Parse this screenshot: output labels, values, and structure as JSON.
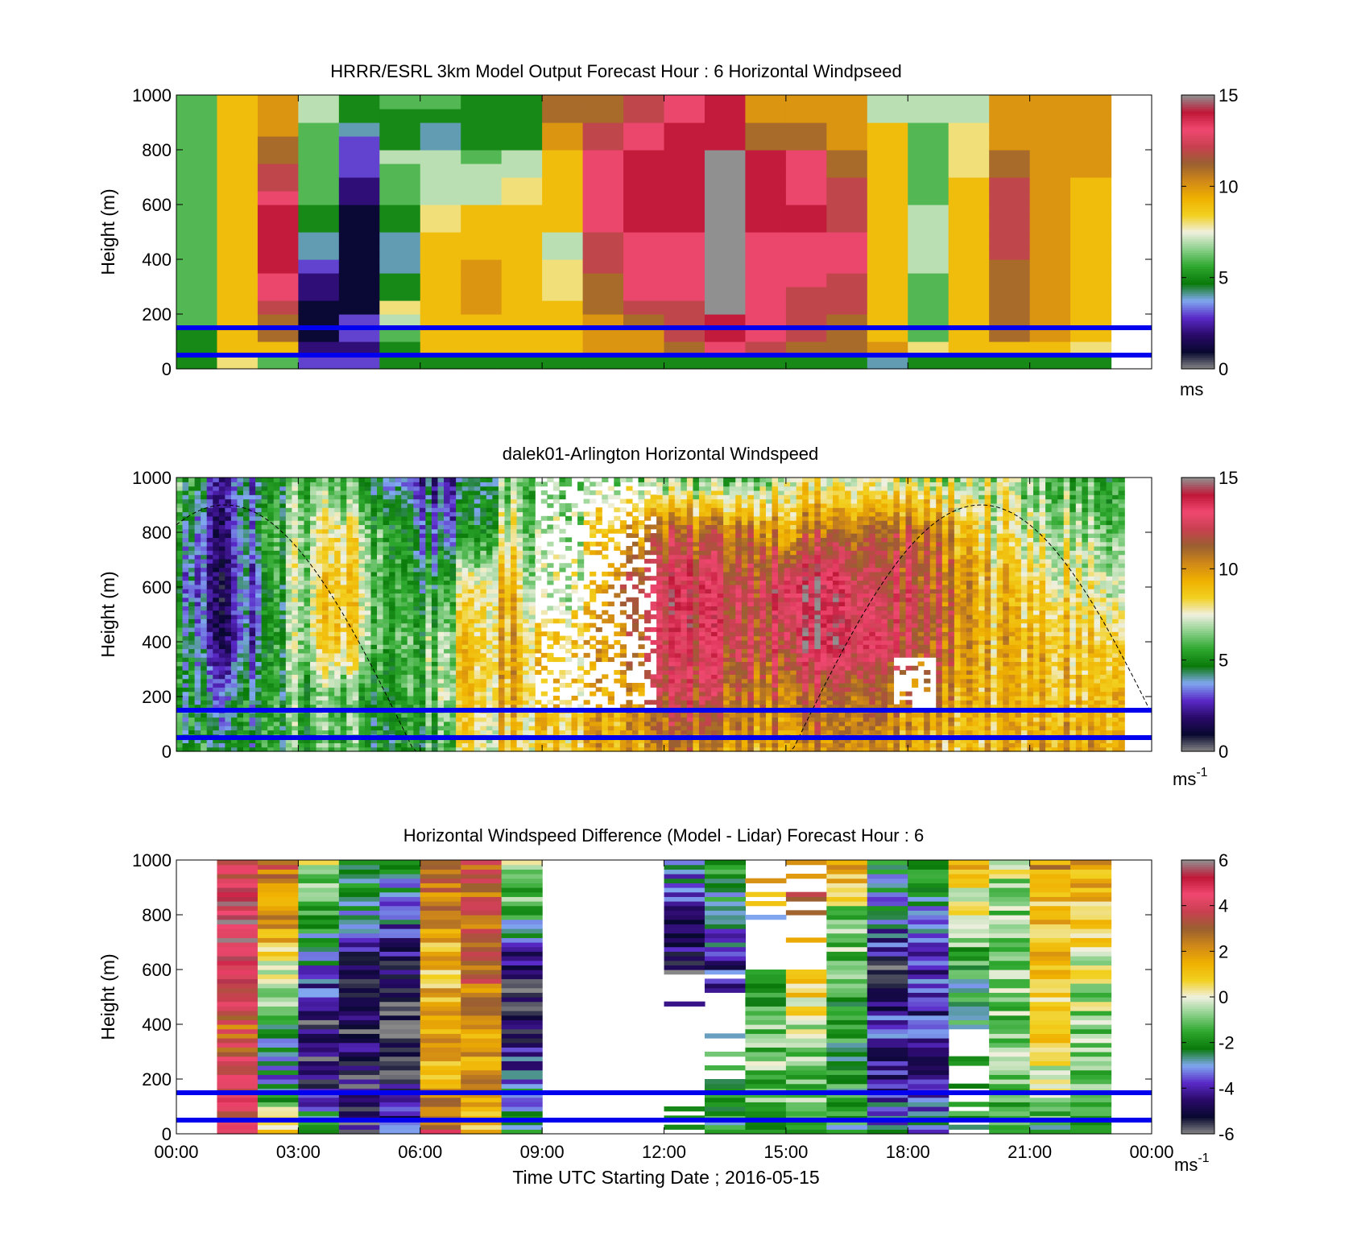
{
  "panels": [
    {
      "id": "model",
      "title": "HRRR/ESRL 3km Model Output   Forecast Hour : 6 Horizontal Windpseed",
      "ylabel": "Height (m)",
      "cbar_unit": "ms",
      "cbar_unit_sup": ""
    },
    {
      "id": "lidar",
      "title": "dalek01-Arlington  Horizontal Windspeed",
      "ylabel": "Height (m)",
      "cbar_unit": "ms",
      "cbar_unit_sup": "-1"
    },
    {
      "id": "diff",
      "title": "Horizontal Windspeed Difference (Model - Lidar) Forecast Hour : 6",
      "ylabel": "Height (m)",
      "cbar_unit": "ms",
      "cbar_unit_sup": "-1"
    }
  ],
  "xlabel": "Time UTC  Starting Date ; 2016-05-15",
  "colors": {
    "speed_scale": [
      "#888888",
      "#080830",
      "#2a0a6a",
      "#5a2ac8",
      "#80a8f0",
      "#0a7a0a",
      "#2ea82e",
      "#8ad08a",
      "#f0f0e0",
      "#f2d020",
      "#f0b000",
      "#d08818",
      "#9a6030",
      "#c84050",
      "#f04870",
      "#c01838",
      "#909090"
    ],
    "diff_scale": [
      "#888888",
      "#080830",
      "#2a0a6a",
      "#5a2ac8",
      "#80a8f0",
      "#0a7a0a",
      "#2ea82e",
      "#8ad08a",
      "#f0f0e0",
      "#f2d020",
      "#f0b000",
      "#d08818",
      "#9a6030",
      "#c84050",
      "#f04870",
      "#c01838",
      "#909090"
    ],
    "height_lines": "#0000ee"
  },
  "chart_data": [
    {
      "type": "heatmap",
      "title": "HRRR/ESRL 3km Model Output   Forecast Hour : 6 Horizontal Windpseed",
      "xlabel": "",
      "ylabel": "Height (m)",
      "xlim_hours": [
        0,
        24
      ],
      "ylim": [
        0,
        1000
      ],
      "xticks": [
        "",
        "",
        "",
        "",
        "",
        "",
        "",
        "",
        ""
      ],
      "yticks": [
        0,
        200,
        400,
        600,
        800,
        1000
      ],
      "clim": [
        0,
        15
      ],
      "cbar_ticks": [
        0,
        5,
        10,
        15
      ],
      "cbar_unit": "ms",
      "time_hours": [
        0,
        1,
        2,
        3,
        4,
        5,
        6,
        7,
        8,
        9,
        10,
        11,
        12,
        13,
        14,
        15,
        16,
        17,
        18,
        19,
        20,
        21,
        22
      ],
      "height_m": [
        25,
        75,
        125,
        175,
        225,
        275,
        325,
        375,
        425,
        475,
        525,
        575,
        625,
        675,
        725,
        775,
        825,
        875,
        925,
        975
      ],
      "horizontal_lines_m": [
        50,
        150
      ],
      "values": [
        [
          5,
          5,
          5,
          6,
          6,
          6,
          6,
          6,
          6,
          6,
          6,
          6,
          6,
          6,
          6,
          6,
          6,
          6,
          6,
          6
        ],
        [
          8,
          9,
          9,
          9,
          9,
          9,
          9,
          9,
          9,
          9,
          9,
          9,
          9,
          9,
          9,
          9,
          9,
          9,
          9,
          9
        ],
        [
          6,
          9,
          11,
          11,
          12,
          13,
          13,
          14,
          14,
          14,
          14,
          14,
          13,
          12,
          12,
          11,
          11,
          10,
          10,
          10
        ],
        [
          3,
          2,
          1,
          1,
          1,
          2,
          2,
          3,
          4,
          4,
          5,
          5,
          6,
          6,
          6,
          6,
          6,
          6,
          7,
          7
        ],
        [
          3,
          2,
          3,
          3,
          1,
          1,
          1,
          1,
          1,
          1,
          1,
          1,
          2,
          2,
          3,
          3,
          3,
          4,
          5,
          5
        ],
        [
          5,
          5,
          6,
          7,
          8,
          5,
          5,
          4,
          4,
          4,
          5,
          5,
          6,
          6,
          6,
          7,
          5,
          5,
          5,
          6
        ],
        [
          5,
          9,
          9,
          9,
          9,
          9,
          9,
          9,
          9,
          9,
          8,
          8,
          7,
          7,
          7,
          7,
          4,
          4,
          5,
          6
        ],
        [
          5,
          9,
          9,
          9,
          10,
          10,
          10,
          10,
          9,
          9,
          9,
          9,
          7,
          7,
          7,
          6,
          5,
          5,
          5,
          5
        ],
        [
          5,
          9,
          9,
          9,
          9,
          9,
          9,
          9,
          9,
          9,
          9,
          9,
          8,
          8,
          7,
          7,
          5,
          5,
          5,
          5
        ],
        [
          5,
          9,
          9,
          9,
          9,
          8,
          8,
          8,
          7,
          7,
          9,
          9,
          9,
          9,
          9,
          9,
          10,
          10,
          11,
          11
        ],
        [
          5,
          10,
          10,
          10,
          11,
          11,
          11,
          12,
          12,
          12,
          13,
          13,
          13,
          13,
          13,
          13,
          12,
          12,
          11,
          11
        ],
        [
          5,
          10,
          10,
          11,
          12,
          13,
          13,
          13,
          13,
          13,
          14,
          14,
          14,
          14,
          14,
          14,
          13,
          13,
          12,
          12
        ],
        [
          5,
          11,
          12,
          12,
          12,
          13,
          13,
          13,
          13,
          13,
          14,
          14,
          14,
          14,
          14,
          14,
          14,
          14,
          13,
          13
        ],
        [
          5,
          13,
          14,
          14,
          15,
          15,
          15,
          15,
          15,
          15,
          16,
          16,
          16,
          16,
          16,
          16,
          14,
          14,
          14,
          14
        ],
        [
          5,
          12,
          13,
          13,
          13,
          13,
          13,
          13,
          13,
          13,
          14,
          14,
          14,
          14,
          14,
          14,
          11,
          11,
          10,
          10
        ],
        [
          5,
          11,
          12,
          12,
          12,
          12,
          13,
          13,
          13,
          13,
          14,
          14,
          13,
          13,
          13,
          13,
          11,
          11,
          10,
          10
        ],
        [
          5,
          11,
          11,
          11,
          12,
          12,
          12,
          13,
          13,
          13,
          12,
          12,
          12,
          12,
          11,
          11,
          10,
          10,
          10,
          10
        ],
        [
          4,
          10,
          9,
          9,
          9,
          9,
          9,
          9,
          9,
          9,
          9,
          9,
          9,
          9,
          9,
          9,
          9,
          9,
          7,
          7
        ],
        [
          5,
          8,
          6,
          6,
          6,
          6,
          6,
          7,
          7,
          7,
          7,
          7,
          6,
          6,
          6,
          6,
          6,
          6,
          7,
          7
        ],
        [
          5,
          9,
          9,
          9,
          9,
          9,
          9,
          9,
          9,
          9,
          9,
          9,
          9,
          9,
          8,
          8,
          8,
          8,
          7,
          7
        ],
        [
          5,
          9,
          11,
          11,
          11,
          11,
          11,
          11,
          12,
          12,
          12,
          12,
          12,
          12,
          11,
          11,
          10,
          10,
          10,
          10
        ],
        [
          5,
          9,
          10,
          10,
          10,
          10,
          10,
          10,
          10,
          10,
          10,
          10,
          10,
          10,
          10,
          10,
          10,
          10,
          10,
          10
        ],
        [
          5,
          8,
          9,
          9,
          9,
          9,
          9,
          9,
          9,
          9,
          9,
          9,
          9,
          9,
          10,
          10,
          10,
          10,
          10,
          10
        ]
      ]
    },
    {
      "type": "heatmap",
      "title": "dalek01-Arlington  Horizontal Windspeed",
      "xlabel": "",
      "ylabel": "Height (m)",
      "xlim_hours": [
        0,
        24
      ],
      "ylim": [
        0,
        1000
      ],
      "yticks": [
        0,
        200,
        400,
        600,
        800,
        1000
      ],
      "clim": [
        0,
        15
      ],
      "cbar_ticks": [
        0,
        5,
        10,
        15
      ],
      "cbar_unit": "ms^-1",
      "horizontal_lines_m": [
        50,
        150
      ],
      "profile_hours": [
        0,
        1,
        2,
        3,
        4,
        5,
        6,
        7,
        8,
        9,
        10,
        11,
        12,
        13,
        14,
        15,
        16,
        17,
        18,
        19,
        20,
        21,
        22,
        23
      ],
      "profile_heights_m": [
        0,
        200,
        400,
        600,
        800,
        1000
      ],
      "profiles": [
        [
          5,
          5,
          5,
          4,
          5,
          6
        ],
        [
          5,
          4,
          2,
          2,
          2,
          3
        ],
        [
          5,
          5,
          4,
          4,
          5,
          4
        ],
        [
          6,
          6,
          7,
          7,
          7,
          6
        ],
        [
          6,
          6,
          9,
          9,
          8,
          6
        ],
        [
          5,
          5,
          6,
          6,
          6,
          4
        ],
        [
          5,
          6,
          6,
          5,
          4,
          3
        ],
        [
          7,
          8,
          8,
          7,
          4,
          3
        ],
        [
          8,
          9,
          9,
          9,
          7,
          6
        ],
        [
          9,
          9,
          9,
          7,
          7,
          7
        ],
        [
          9,
          9,
          9,
          8,
          8,
          6
        ],
        [
          10,
          10,
          11,
          12,
          10,
          7
        ],
        [
          10,
          12,
          13,
          13,
          11,
          6
        ],
        [
          10,
          12,
          13,
          13,
          11,
          6
        ],
        [
          10,
          11,
          12,
          12,
          11,
          6
        ],
        [
          10,
          11,
          13,
          14,
          10,
          8
        ],
        [
          10,
          11,
          14,
          14,
          11,
          7
        ],
        [
          10,
          11,
          13,
          12,
          11,
          7
        ],
        [
          9,
          10,
          12,
          12,
          11,
          7
        ],
        [
          9,
          10,
          11,
          11,
          10,
          7
        ],
        [
          9,
          9,
          9,
          9,
          8,
          7
        ],
        [
          9,
          9,
          9,
          8,
          7,
          6
        ],
        [
          10,
          9,
          9,
          8,
          7,
          6
        ],
        [
          9,
          9,
          8,
          7,
          6,
          5
        ]
      ],
      "no_data_regions": [
        {
          "hours": [
            8.7,
            11.8
          ],
          "heights_m": [
            150,
            1000
          ],
          "coverage": 0.55
        },
        {
          "hours": [
            17.5,
            18.6
          ],
          "heights_m": [
            150,
            350
          ],
          "coverage": 0.8
        }
      ],
      "dashed_curve": {
        "shape": "sinusoid",
        "hours": [
          0,
          24
        ],
        "height_min_m": 0,
        "height_max_m": 900,
        "zero_crossings_hours": [
          3.3,
          12.6
        ],
        "peak_hour": 19.8
      }
    },
    {
      "type": "heatmap",
      "title": "Horizontal Windspeed Difference (Model - Lidar) Forecast Hour : 6",
      "xlabel": "Time UTC  Starting Date ; 2016-05-15",
      "ylabel": "Height (m)",
      "xlim_hours": [
        0,
        24
      ],
      "ylim": [
        0,
        1000
      ],
      "xticks": [
        "00:00",
        "03:00",
        "06:00",
        "09:00",
        "12:00",
        "15:00",
        "18:00",
        "21:00",
        "00:00"
      ],
      "yticks": [
        0,
        200,
        400,
        600,
        800,
        1000
      ],
      "clim": [
        -6,
        6
      ],
      "cbar_ticks": [
        -6,
        -4,
        -2,
        0,
        2,
        4,
        6
      ],
      "cbar_unit": "ms^-1",
      "horizontal_lines_m": [
        50,
        150
      ],
      "time_hours": [
        1,
        2,
        3,
        4,
        5,
        6,
        7,
        8,
        9,
        10,
        11,
        12,
        13,
        14,
        15,
        16,
        17,
        18,
        19,
        20,
        21,
        22
      ],
      "height_m": [
        0,
        200,
        400,
        600,
        800,
        1000
      ],
      "values": [
        [
          4,
          4,
          3,
          5,
          5,
          4
        ],
        [
          1,
          -3,
          -2,
          0,
          2,
          3
        ],
        [
          -1,
          -5,
          -5,
          -3,
          -2,
          0
        ],
        [
          -5,
          -5,
          -5,
          -5,
          -3,
          -2
        ],
        [
          -4,
          -5,
          -6,
          -5,
          -3,
          -2
        ],
        [
          4,
          1,
          2,
          1,
          2,
          3
        ],
        [
          1,
          2,
          2,
          3,
          3,
          3
        ],
        [
          -2,
          -3,
          -5,
          -5,
          -2,
          0
        ],
        [
          null,
          null,
          null,
          null,
          null,
          null
        ],
        [
          null,
          null,
          null,
          null,
          null,
          null
        ],
        [
          null,
          null,
          null,
          null,
          null,
          null
        ],
        [
          -1,
          null,
          null,
          -5,
          -4,
          -3
        ],
        [
          -2,
          -2,
          null,
          -4,
          -3,
          -1
        ],
        [
          -2,
          -1,
          -1,
          -2,
          null,
          2
        ],
        [
          -1,
          -1,
          0,
          1,
          null,
          3
        ],
        [
          -2,
          -2,
          -2,
          -1,
          -1,
          2
        ],
        [
          -3,
          -4,
          -4,
          -5,
          -3,
          -2
        ],
        [
          -3,
          -4,
          -4,
          -4,
          -3,
          -1
        ],
        [
          -2,
          null,
          -2,
          -2,
          0,
          1
        ],
        [
          -2,
          -1,
          -1,
          -1,
          -1,
          0
        ],
        [
          -2,
          0,
          1,
          1,
          1,
          2
        ],
        [
          -2,
          -1,
          -1,
          0,
          1,
          2
        ]
      ]
    }
  ]
}
